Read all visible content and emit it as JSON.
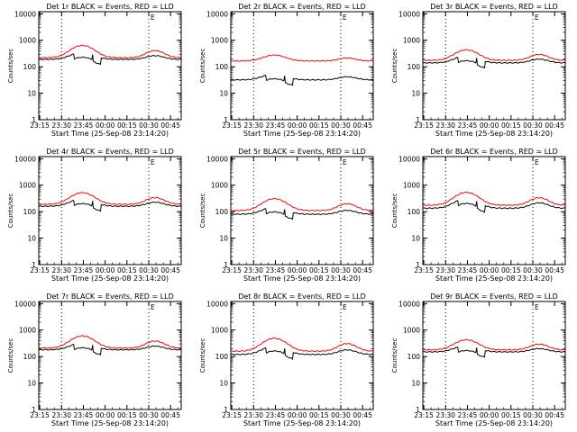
{
  "colors": {
    "events": "#000000",
    "lld": "#ff0000",
    "background": "#ffffff",
    "axes": "#000000"
  },
  "chart_data": [
    {
      "type": "line",
      "title": "Det 1r BLACK = Events, RED = LLD",
      "xlabel": "Start Time (25-Sep-08 23:14:20)",
      "ylabel": "Counts/sec",
      "x_ticks": [
        "23:15",
        "23:30",
        "23:45",
        "00:00",
        "00:15",
        "00:30",
        "00:45"
      ],
      "y_ticks": [
        "1",
        "10",
        "100",
        "1000",
        "10000"
      ],
      "y_scale": "log",
      "ylim": [
        1,
        12000
      ],
      "flag": "E",
      "series": [
        {
          "key": "events",
          "color": "#000000",
          "base": 190,
          "bump": 160,
          "dip1": [
            200,
            250
          ],
          "dip2": [
            570,
            640
          ]
        },
        {
          "key": "lld",
          "color": "#ff0000",
          "base": 220,
          "bump": 420,
          "dip1": null,
          "dip2": null
        }
      ]
    },
    {
      "type": "line",
      "title": "Det 2r BLACK = Events, RED = LLD",
      "xlabel": "Start Time (25-Sep-08 23:14:20)",
      "ylabel": "Counts/sec",
      "x_ticks": [
        "23:15",
        "23:30",
        "23:45",
        "00:00",
        "00:15",
        "00:30",
        "00:45"
      ],
      "y_ticks": [
        "1",
        "10",
        "100",
        "1000",
        "10000"
      ],
      "y_scale": "log",
      "ylim": [
        1,
        12000
      ],
      "flag": "E",
      "series": [
        {
          "key": "events",
          "color": "#000000",
          "base": 32,
          "bump": 22,
          "dip1": [
            430,
            640
          ],
          "dip2": [
            860,
            1080
          ]
        },
        {
          "key": "lld",
          "color": "#ff0000",
          "base": 165,
          "bump": 110,
          "dip1": null,
          "dip2": null
        }
      ]
    },
    {
      "type": "line",
      "title": "Det 3r BLACK = Events, RED = LLD",
      "xlabel": "Start Time (25-Sep-08 23:14:20)",
      "ylabel": "Counts/sec",
      "x_ticks": [
        "23:15",
        "23:30",
        "23:45",
        "00:00",
        "00:15",
        "00:30",
        "00:45"
      ],
      "y_ticks": [
        "1",
        "10",
        "100",
        "1000",
        "10000"
      ],
      "y_scale": "log",
      "ylim": [
        1,
        12000
      ],
      "flag": "E",
      "series": [
        {
          "key": "events",
          "color": "#000000",
          "base": 140,
          "bump": 120,
          "dip1": [
            200,
            250
          ],
          "dip2": [
            570,
            640
          ]
        },
        {
          "key": "lld",
          "color": "#ff0000",
          "base": 175,
          "bump": 260,
          "dip1": null,
          "dip2": null
        }
      ]
    },
    {
      "type": "line",
      "title": "Det 4r BLACK = Events, RED = LLD",
      "xlabel": "Start Time (25-Sep-08 23:14:20)",
      "ylabel": "Counts/sec",
      "x_ticks": [
        "23:15",
        "23:30",
        "23:45",
        "00:00",
        "00:15",
        "00:30",
        "00:45"
      ],
      "y_ticks": [
        "1",
        "10",
        "100",
        "1000",
        "10000"
      ],
      "y_scale": "log",
      "ylim": [
        1,
        12000
      ],
      "flag": "E",
      "series": [
        {
          "key": "events",
          "color": "#000000",
          "base": 160,
          "bump": 150,
          "dip1": [
            200,
            250
          ],
          "dip2": [
            570,
            640
          ]
        },
        {
          "key": "lld",
          "color": "#ff0000",
          "base": 190,
          "bump": 330,
          "dip1": null,
          "dip2": null
        }
      ]
    },
    {
      "type": "line",
      "title": "Det 5r BLACK = Events, RED = LLD",
      "xlabel": "Start Time (25-Sep-08 23:14:20)",
      "ylabel": "Counts/sec",
      "x_ticks": [
        "23:15",
        "23:30",
        "23:45",
        "00:00",
        "00:15",
        "00:30",
        "00:45"
      ],
      "y_ticks": [
        "1",
        "10",
        "100",
        "1000",
        "10000"
      ],
      "y_scale": "log",
      "ylim": [
        1,
        12000
      ],
      "flag": "E",
      "series": [
        {
          "key": "events",
          "color": "#000000",
          "base": 80,
          "bump": 70,
          "dip1": [
            290,
            500
          ],
          "dip2": [
            760,
            960
          ]
        },
        {
          "key": "lld",
          "color": "#ff0000",
          "base": 110,
          "bump": 200,
          "dip1": null,
          "dip2": null
        }
      ]
    },
    {
      "type": "line",
      "title": "Det 6r BLACK = Events, RED = LLD",
      "xlabel": "Start Time (25-Sep-08 23:14:20)",
      "ylabel": "Counts/sec",
      "x_ticks": [
        "23:15",
        "23:30",
        "23:45",
        "00:00",
        "00:15",
        "00:30",
        "00:45"
      ],
      "y_ticks": [
        "1",
        "10",
        "100",
        "1000",
        "10000"
      ],
      "y_scale": "log",
      "ylim": [
        1,
        12000
      ],
      "flag": "E",
      "series": [
        {
          "key": "events",
          "color": "#000000",
          "base": 135,
          "bump": 180,
          "dip1": [
            200,
            250
          ],
          "dip2": [
            570,
            640
          ]
        },
        {
          "key": "lld",
          "color": "#ff0000",
          "base": 175,
          "bump": 360,
          "dip1": null,
          "dip2": null
        }
      ]
    },
    {
      "type": "line",
      "title": "Det 7r BLACK = Events, RED = LLD",
      "xlabel": "Start Time (25-Sep-08 23:14:20)",
      "ylabel": "Counts/sec",
      "x_ticks": [
        "23:15",
        "23:30",
        "23:45",
        "00:00",
        "00:15",
        "00:30",
        "00:45"
      ],
      "y_ticks": [
        "1",
        "10",
        "100",
        "1000",
        "10000"
      ],
      "y_scale": "log",
      "ylim": [
        1,
        12000
      ],
      "flag": "E",
      "series": [
        {
          "key": "events",
          "color": "#000000",
          "base": 180,
          "bump": 150,
          "dip1": [
            200,
            250
          ],
          "dip2": [
            570,
            640
          ]
        },
        {
          "key": "lld",
          "color": "#ff0000",
          "base": 210,
          "bump": 390,
          "dip1": null,
          "dip2": null
        }
      ]
    },
    {
      "type": "line",
      "title": "Det 8r BLACK = Events, RED = LLD",
      "xlabel": "Start Time (25-Sep-08 23:14:20)",
      "ylabel": "Counts/sec",
      "x_ticks": [
        "23:15",
        "23:30",
        "23:45",
        "00:00",
        "00:15",
        "00:30",
        "00:45"
      ],
      "y_ticks": [
        "1",
        "10",
        "100",
        "1000",
        "10000"
      ],
      "y_scale": "log",
      "ylim": [
        1,
        12000
      ],
      "flag": "E",
      "series": [
        {
          "key": "events",
          "color": "#000000",
          "base": 120,
          "bump": 130,
          "dip1": [
            200,
            250
          ],
          "dip2": [
            570,
            640
          ]
        },
        {
          "key": "lld",
          "color": "#ff0000",
          "base": 160,
          "bump": 330,
          "dip1": null,
          "dip2": null
        }
      ]
    },
    {
      "type": "line",
      "title": "Det 9r BLACK = Events, RED = LLD",
      "xlabel": "Start Time (25-Sep-08 23:14:20)",
      "ylabel": "Counts/sec",
      "x_ticks": [
        "23:15",
        "23:30",
        "23:45",
        "00:00",
        "00:15",
        "00:30",
        "00:45"
      ],
      "y_ticks": [
        "1",
        "10",
        "100",
        "1000",
        "10000"
      ],
      "y_scale": "log",
      "ylim": [
        1,
        12000
      ],
      "flag": "E",
      "series": [
        {
          "key": "events",
          "color": "#000000",
          "base": 150,
          "bump": 110,
          "dip1": [
            200,
            250
          ],
          "dip2": [
            570,
            640
          ]
        },
        {
          "key": "lld",
          "color": "#ff0000",
          "base": 180,
          "bump": 250,
          "dip1": null,
          "dip2": null
        }
      ]
    }
  ]
}
